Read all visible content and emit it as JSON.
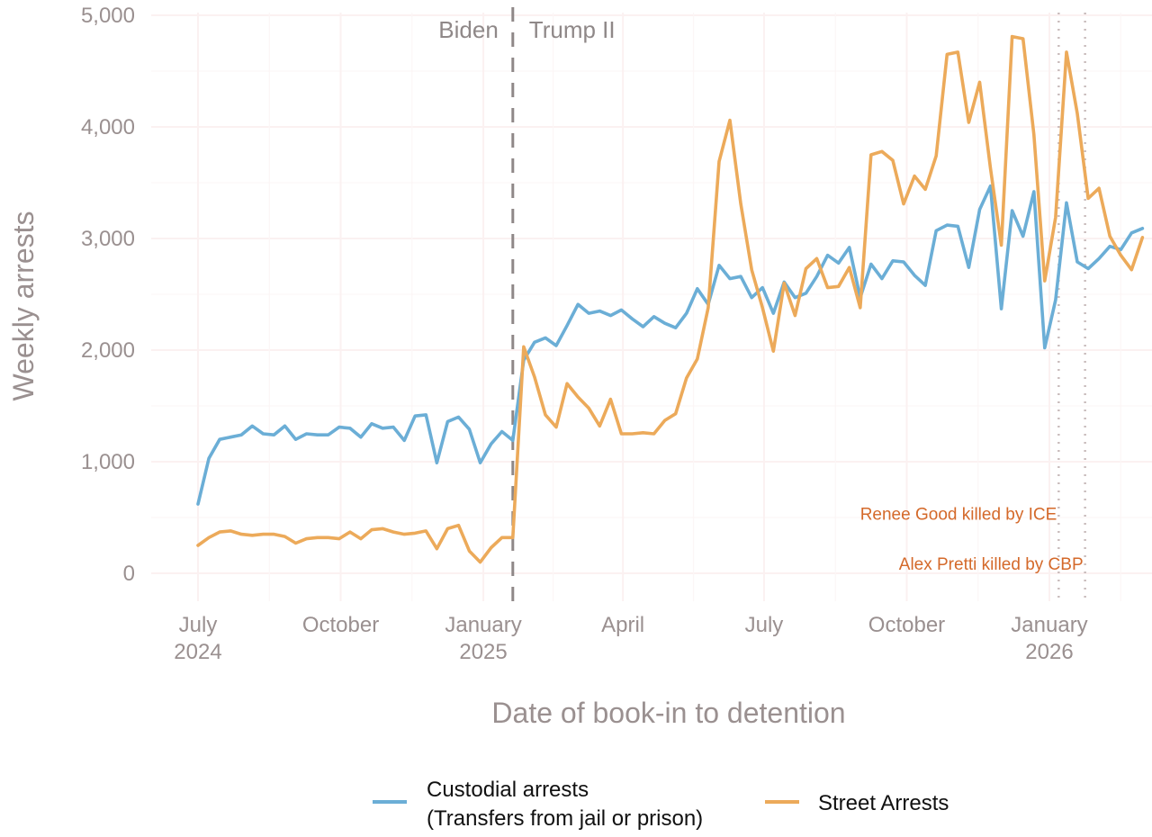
{
  "chart_data": {
    "type": "line",
    "title": "",
    "xlabel": "Date of book-in to detention",
    "ylabel": "Weekly arrests",
    "ylim": [
      0,
      5000
    ],
    "yticks": [
      0,
      1000,
      2000,
      3000,
      4000,
      5000
    ],
    "ytick_labels": [
      "0",
      "1,000",
      "2,000",
      "3,000",
      "4,000",
      "5,000"
    ],
    "x_start": "2024-07-01",
    "x_interval": "weekly",
    "xlim": [
      "2024-06-03",
      "2026-03-02"
    ],
    "xticks": [
      {
        "date": "2024-07-01",
        "label": "July",
        "year": "2024"
      },
      {
        "date": "2024-10-01",
        "label": "October",
        "year": ""
      },
      {
        "date": "2025-01-01",
        "label": "January",
        "year": "2025"
      },
      {
        "date": "2025-04-01",
        "label": "April",
        "year": ""
      },
      {
        "date": "2025-07-01",
        "label": "July",
        "year": ""
      },
      {
        "date": "2025-10-01",
        "label": "October",
        "year": ""
      },
      {
        "date": "2026-01-01",
        "label": "January",
        "year": "2026"
      }
    ],
    "grid": true,
    "legend_position": "bottom",
    "series": [
      {
        "name": "Custodial arrests\n(Transfers from jail or prison)",
        "legend_line1": "Custodial arrests",
        "legend_line2": "(Transfers from jail or prison)",
        "color": "#6baed6",
        "values": [
          620,
          1030,
          1200,
          1220,
          1240,
          1320,
          1250,
          1240,
          1320,
          1200,
          1250,
          1240,
          1240,
          1310,
          1300,
          1220,
          1340,
          1300,
          1310,
          1190,
          1410,
          1420,
          990,
          1360,
          1400,
          1290,
          990,
          1160,
          1270,
          1190,
          1910,
          2070,
          2110,
          2040,
          2220,
          2410,
          2330,
          2350,
          2310,
          2360,
          2280,
          2210,
          2300,
          2240,
          2200,
          2330,
          2550,
          2410,
          2760,
          2640,
          2660,
          2470,
          2560,
          2330,
          2610,
          2470,
          2510,
          2660,
          2850,
          2780,
          2920,
          2470,
          2770,
          2640,
          2800,
          2790,
          2670,
          2580,
          3070,
          3120,
          3110,
          2740,
          3260,
          3470,
          2370,
          3250,
          3020,
          3420,
          2020,
          2450,
          3320,
          2790,
          2730,
          2820,
          2930,
          2900,
          3050,
          3090
        ]
      },
      {
        "name": "Street Arrests",
        "legend_line1": "Street Arrests",
        "legend_line2": "",
        "color": "#ecaa5a",
        "values": [
          250,
          320,
          370,
          380,
          350,
          340,
          350,
          350,
          330,
          270,
          310,
          320,
          320,
          310,
          370,
          310,
          390,
          400,
          370,
          350,
          360,
          380,
          220,
          400,
          430,
          200,
          100,
          230,
          320,
          320,
          2030,
          1760,
          1420,
          1310,
          1700,
          1580,
          1480,
          1320,
          1560,
          1250,
          1250,
          1260,
          1250,
          1370,
          1430,
          1750,
          1920,
          2380,
          3690,
          4060,
          3310,
          2720,
          2380,
          1990,
          2600,
          2310,
          2730,
          2820,
          2560,
          2570,
          2740,
          2380,
          3750,
          3780,
          3700,
          3310,
          3560,
          3440,
          3740,
          4650,
          4670,
          4040,
          4400,
          3630,
          2940,
          4810,
          4790,
          3930,
          2620,
          3190,
          4670,
          4120,
          3360,
          3450,
          3020,
          2850,
          2720,
          3010
        ]
      }
    ],
    "annotations": {
      "era_divider": {
        "date": "2025-01-20",
        "style": "dashed",
        "color": "#8f8888",
        "left_label": "Biden",
        "right_label": "Trump II"
      },
      "events": [
        {
          "date": "2026-01-07",
          "label": "Renee Good killed by ICE",
          "color": "#d4692a",
          "value_y": 530
        },
        {
          "date": "2026-01-24",
          "label": "Alex Pretti killed by CBP",
          "color": "#d4692a",
          "value_y": 80
        }
      ]
    }
  }
}
